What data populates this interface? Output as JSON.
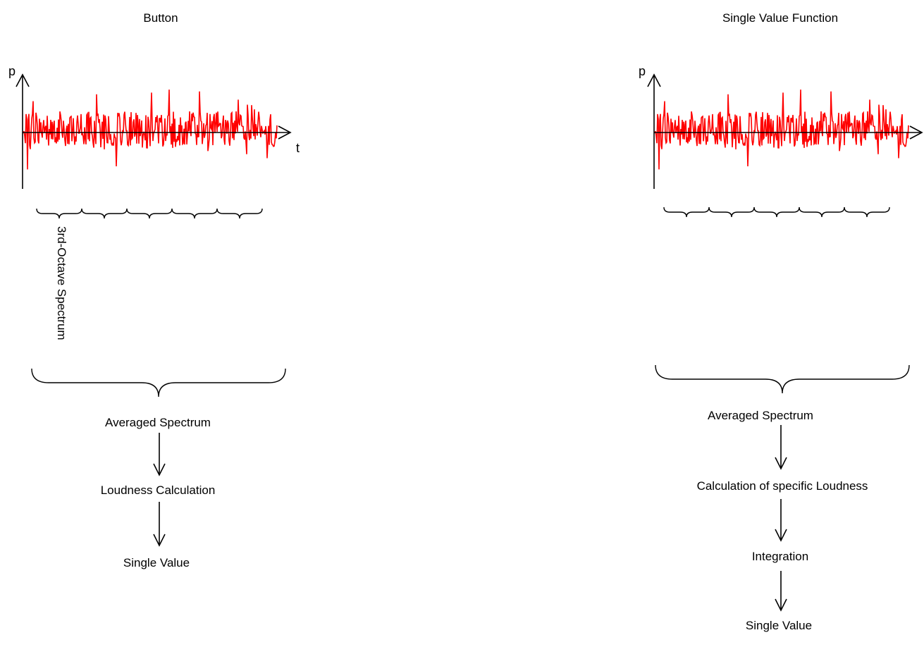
{
  "left_panel": {
    "title": "Button",
    "axis_y": "p",
    "axis_x": "t",
    "vertical_label": "3rd-Octave Spectrum",
    "steps": [
      "Averaged Spectrum",
      "Loudness Calculation",
      "Single Value"
    ]
  },
  "right_panel": {
    "title": "Single Value Function",
    "axis_y": "p",
    "steps": [
      "Averaged Spectrum",
      "Calculation of specific Loudness",
      "Integration",
      "Single Value"
    ]
  },
  "colors": {
    "signal": "#ff0000",
    "line": "#000000"
  }
}
